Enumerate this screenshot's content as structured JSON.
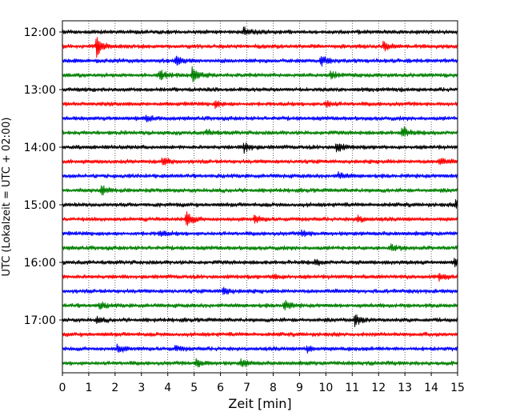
{
  "chart_data": {
    "type": "line",
    "title": "",
    "xlabel": "Zeit  [min]",
    "ylabel": "UTC (Lokalzeit = UTC + 02:00)",
    "xlim": [
      0,
      15
    ],
    "x_ticks": [
      0,
      1,
      2,
      3,
      4,
      5,
      6,
      7,
      8,
      9,
      10,
      11,
      12,
      13,
      14,
      15
    ],
    "x_tick_labels": [
      "0",
      "1",
      "2",
      "3",
      "4",
      "5",
      "6",
      "7",
      "8",
      "9",
      "10",
      "11",
      "12",
      "13",
      "14",
      "15"
    ],
    "y_tick_labels": [
      "12:00",
      "13:00",
      "14:00",
      "15:00",
      "16:00",
      "17:00"
    ],
    "grid": "vertical dotted lines at each minute",
    "trace_interval_minutes": 15,
    "trace_colors": [
      "#000000",
      "#ff0000",
      "#0000ff",
      "#008000"
    ],
    "traces": [
      {
        "start": "12:00",
        "color": "#000000",
        "events": [
          {
            "t": 6.9,
            "amp": 0.35
          }
        ]
      },
      {
        "start": "12:15",
        "color": "#ff0000",
        "events": [
          {
            "t": 1.3,
            "amp": 1.0
          },
          {
            "t": 12.2,
            "amp": 0.35
          }
        ]
      },
      {
        "start": "12:30",
        "color": "#0000ff",
        "events": [
          {
            "t": 4.3,
            "amp": 0.4
          },
          {
            "t": 9.8,
            "amp": 0.55
          }
        ]
      },
      {
        "start": "12:45",
        "color": "#008000",
        "events": [
          {
            "t": 3.7,
            "amp": 0.55
          },
          {
            "t": 4.95,
            "amp": 0.75
          },
          {
            "t": 10.2,
            "amp": 0.35
          }
        ]
      },
      {
        "start": "13:00",
        "color": "#000000",
        "events": []
      },
      {
        "start": "13:15",
        "color": "#ff0000",
        "events": [
          {
            "t": 5.8,
            "amp": 0.3
          },
          {
            "t": 10.0,
            "amp": 0.3
          }
        ]
      },
      {
        "start": "13:30",
        "color": "#0000ff",
        "events": [
          {
            "t": 3.2,
            "amp": 0.25
          }
        ]
      },
      {
        "start": "13:45",
        "color": "#008000",
        "events": [
          {
            "t": 12.9,
            "amp": 0.6
          },
          {
            "t": 5.5,
            "amp": 0.25
          }
        ]
      },
      {
        "start": "14:00",
        "color": "#000000",
        "events": [
          {
            "t": 6.9,
            "amp": 0.5
          },
          {
            "t": 10.4,
            "amp": 0.5
          }
        ]
      },
      {
        "start": "14:15",
        "color": "#ff0000",
        "events": [
          {
            "t": 3.8,
            "amp": 0.4
          },
          {
            "t": 14.3,
            "amp": 0.35
          }
        ]
      },
      {
        "start": "14:30",
        "color": "#0000ff",
        "events": [
          {
            "t": 10.5,
            "amp": 0.3
          }
        ]
      },
      {
        "start": "14:45",
        "color": "#008000",
        "events": [
          {
            "t": 1.5,
            "amp": 0.45
          }
        ]
      },
      {
        "start": "15:00",
        "color": "#000000",
        "events": [
          {
            "t": 14.95,
            "amp": 0.4
          }
        ]
      },
      {
        "start": "15:15",
        "color": "#ff0000",
        "events": [
          {
            "t": 4.7,
            "amp": 0.8
          },
          {
            "t": 7.3,
            "amp": 0.35
          },
          {
            "t": 11.2,
            "amp": 0.35
          }
        ]
      },
      {
        "start": "15:30",
        "color": "#0000ff",
        "events": [
          {
            "t": 3.7,
            "amp": 0.3
          },
          {
            "t": 9.1,
            "amp": 0.3
          }
        ]
      },
      {
        "start": "15:45",
        "color": "#008000",
        "events": [
          {
            "t": 12.5,
            "amp": 0.3
          }
        ]
      },
      {
        "start": "16:00",
        "color": "#000000",
        "events": [
          {
            "t": 14.9,
            "amp": 0.5
          },
          {
            "t": 9.6,
            "amp": 0.25
          }
        ]
      },
      {
        "start": "16:15",
        "color": "#ff0000",
        "events": [
          {
            "t": 14.3,
            "amp": 0.35
          },
          {
            "t": 8.0,
            "amp": 0.25
          }
        ]
      },
      {
        "start": "16:30",
        "color": "#0000ff",
        "events": [
          {
            "t": 6.1,
            "amp": 0.4
          }
        ]
      },
      {
        "start": "16:45",
        "color": "#008000",
        "events": [
          {
            "t": 8.4,
            "amp": 0.5
          },
          {
            "t": 1.4,
            "amp": 0.3
          }
        ]
      },
      {
        "start": "17:00",
        "color": "#000000",
        "events": [
          {
            "t": 11.1,
            "amp": 0.55
          },
          {
            "t": 1.3,
            "amp": 0.25
          }
        ]
      },
      {
        "start": "17:15",
        "color": "#ff0000",
        "events": []
      },
      {
        "start": "17:30",
        "color": "#0000ff",
        "events": [
          {
            "t": 2.1,
            "amp": 0.35
          },
          {
            "t": 9.3,
            "amp": 0.3
          },
          {
            "t": 4.3,
            "amp": 0.25
          }
        ]
      },
      {
        "start": "17:45",
        "color": "#008000",
        "events": [
          {
            "t": 5.1,
            "amp": 0.45
          },
          {
            "t": 6.8,
            "amp": 0.35
          }
        ]
      }
    ]
  }
}
